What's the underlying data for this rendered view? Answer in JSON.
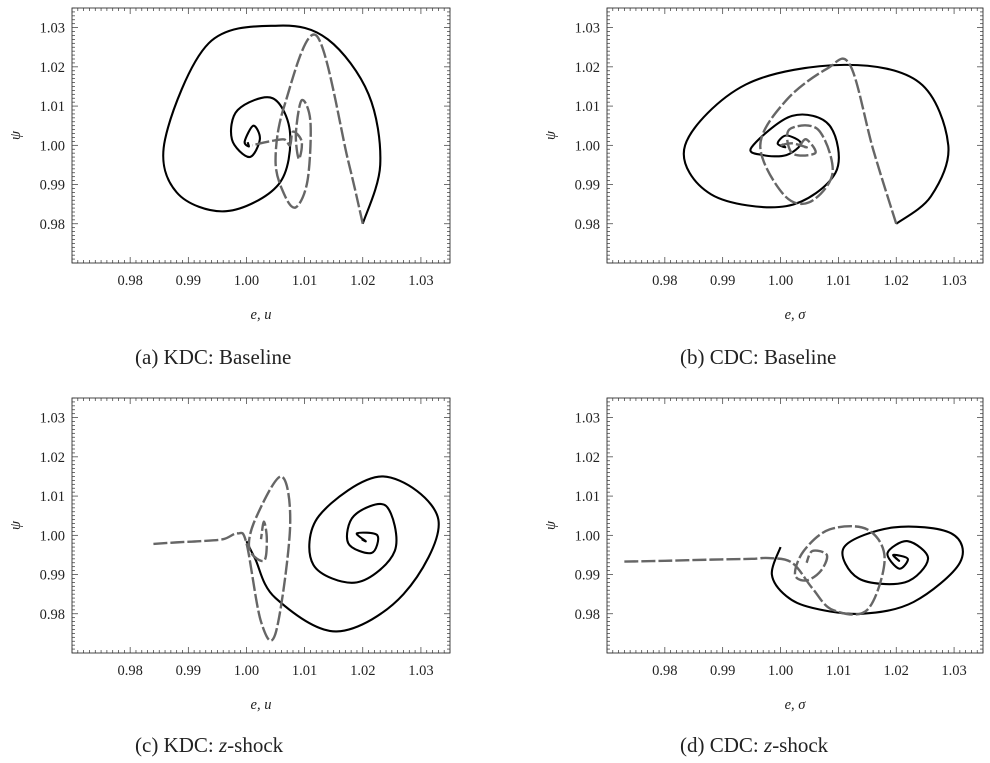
{
  "chart_data": [
    {
      "id": "a",
      "type": "line",
      "caption_prefix": "(a) KDC: ",
      "caption_italic": "",
      "caption_text": "Baseline",
      "xlabel": "e, u",
      "ylabel": "ψ",
      "xlim": [
        0.97,
        1.035
      ],
      "ylim": [
        0.97,
        1.035
      ],
      "xticks": [
        "0.98",
        "0.99",
        "1.00",
        "1.01",
        "1.02",
        "1.03"
      ],
      "yticks": [
        "0.98",
        "0.99",
        "1.00",
        "1.01",
        "1.02",
        "1.03"
      ],
      "series": [
        {
          "style": "solid",
          "color": "#000000",
          "x": [
            1.02,
            1.023,
            1.021,
            1.014,
            1.0055,
            0.9935,
            0.986,
            0.988,
            0.9965,
            1.0055,
            1.0075,
            1.0045,
            0.9985,
            0.9975,
            1.0005,
            1.0023,
            1.0012,
            0.9997,
            1.0004,
            1.0002
          ],
          "y": [
            0.98,
            0.995,
            1.013,
            1.027,
            1.0305,
            1.026,
            1.0015,
            0.988,
            0.9832,
            0.99,
            1.003,
            1.012,
            1.009,
            1.0015,
            0.997,
            1.0015,
            1.005,
            1.001,
            0.9997,
            1.0008
          ]
        },
        {
          "style": "dashed",
          "color": "#666666",
          "x": [
            1.02,
            1.0175,
            1.012,
            1.0065,
            1.005,
            1.0065,
            1.0085,
            1.0105,
            1.011,
            1.0095,
            1.0085,
            1.009,
            1.0095,
            1.008,
            1.0075,
            1.0065,
            1.004,
            1.001
          ],
          "y": [
            0.98,
            0.996,
            1.028,
            1.01,
            0.996,
            0.9875,
            0.9842,
            0.991,
            1.006,
            1.0115,
            1.003,
            0.9965,
            1.001,
            1.0035,
            1.0,
            1.0015,
            1.001,
            1.0
          ]
        }
      ]
    },
    {
      "id": "b",
      "type": "line",
      "caption_prefix": "(b) CDC: ",
      "caption_italic": "",
      "caption_text": "Baseline",
      "xlabel": "e, σ",
      "ylabel": "ψ",
      "xlim": [
        0.97,
        1.035
      ],
      "ylim": [
        0.97,
        1.035
      ],
      "xticks": [
        "0.98",
        "0.99",
        "1.00",
        "1.01",
        "1.02",
        "1.03"
      ],
      "yticks": [
        "0.98",
        "0.99",
        "1.00",
        "1.01",
        "1.02",
        "1.03"
      ],
      "series": [
        {
          "style": "solid",
          "color": "#000000",
          "x": [
            1.02,
            1.026,
            1.029,
            1.024,
            1.011,
            0.994,
            0.9835,
            0.988,
            1.001,
            1.0095,
            1.0085,
            1.002,
            0.995,
            0.997,
            1.001,
            1.0035,
            1.001,
            0.9995,
            1.0008,
            1.0002
          ],
          "y": [
            0.98,
            0.987,
            1.0,
            1.016,
            1.0205,
            1.0155,
            1.0,
            0.9875,
            0.9845,
            0.993,
            1.005,
            1.0075,
            0.9995,
            0.9975,
            0.9975,
            1.0005,
            1.0025,
            1.0005,
            0.9995,
            1.0003
          ]
        },
        {
          "style": "dashed",
          "color": "#666666",
          "x": [
            1.02,
            1.016,
            1.012,
            1.008,
            1.001,
            0.9965,
            1.0005,
            1.005,
            1.009,
            1.0065,
            1.0015,
            1.002,
            1.006,
            1.0045,
            1.0035,
            1.0045,
            1.002,
            1.0
          ],
          "y": [
            0.98,
            0.999,
            1.0205,
            1.0195,
            1.0115,
            1.0,
            0.9875,
            0.9855,
            0.993,
            1.004,
            1.004,
            0.998,
            0.998,
            1.0015,
            1.0,
            0.9995,
            1.0005,
            1.0
          ]
        }
      ]
    },
    {
      "id": "c",
      "type": "line",
      "caption_prefix": "(c) KDC: ",
      "caption_italic": "z",
      "caption_text": "-shock",
      "xlabel": "e, u",
      "ylabel": "ψ",
      "xlim": [
        0.97,
        1.035
      ],
      "ylim": [
        0.97,
        1.035
      ],
      "xticks": [
        "0.98",
        "0.99",
        "1.00",
        "1.01",
        "1.02",
        "1.03"
      ],
      "yticks": [
        "0.98",
        "0.99",
        "1.00",
        "1.01",
        "1.02",
        "1.03"
      ],
      "series": [
        {
          "style": "solid",
          "color": "#000000",
          "x": [
            1.0,
            1.0015,
            1.005,
            1.0155,
            1.027,
            1.033,
            1.0235,
            1.0125,
            1.0115,
            1.019,
            1.0255,
            1.024,
            1.0185,
            1.0175,
            1.0215,
            1.0225,
            1.019,
            1.0205,
            1.0198
          ],
          "y": [
            0.9985,
            0.994,
            0.984,
            0.9755,
            0.985,
            1.004,
            1.015,
            1.005,
            0.9925,
            0.988,
            0.996,
            1.0075,
            1.005,
            0.998,
            0.9955,
            1.0,
            1.0005,
            0.9985,
            0.999
          ]
        },
        {
          "style": "dashed",
          "color": "#666666",
          "x": [
            0.984,
            0.988,
            0.992,
            0.996,
            0.9985,
            1.0,
            1.0025,
            1.005,
            1.0075,
            1.006,
            1.0015,
            1.0005,
            1.003,
            1.0035,
            1.003,
            1.0025
          ],
          "y": [
            0.9978,
            0.9982,
            0.9985,
            0.999,
            1.0005,
            0.998,
            0.978,
            0.975,
            1.002,
            1.015,
            1.004,
            0.9965,
            0.9935,
            0.999,
            1.0035,
            0.999
          ]
        }
      ]
    },
    {
      "id": "d",
      "type": "line",
      "caption_prefix": "(d) CDC: ",
      "caption_italic": "z",
      "caption_text": "-shock",
      "xlabel": "e, σ",
      "ylabel": "ψ",
      "xlim": [
        0.97,
        1.035
      ],
      "ylim": [
        0.97,
        1.035
      ],
      "xticks": [
        "0.98",
        "0.99",
        "1.00",
        "1.01",
        "1.02",
        "1.03"
      ],
      "yticks": [
        "0.98",
        "0.99",
        "1.00",
        "1.01",
        "1.02",
        "1.03"
      ],
      "series": [
        {
          "style": "solid",
          "color": "#000000",
          "x": [
            1.0,
            0.9985,
            1.001,
            1.0055,
            1.014,
            1.023,
            1.031,
            1.0295,
            1.0195,
            1.011,
            1.0135,
            1.0215,
            1.0255,
            1.022,
            1.0185,
            1.0205,
            1.022,
            1.0195,
            1.0205,
            1.0199
          ],
          "y": [
            0.997,
            0.99,
            0.9845,
            0.9815,
            0.98,
            0.983,
            0.993,
            1.0005,
            1.002,
            0.997,
            0.989,
            0.988,
            0.994,
            0.9985,
            0.9955,
            0.9915,
            0.994,
            0.995,
            0.9935,
            0.9942
          ]
        },
        {
          "style": "dashed",
          "color": "#666666",
          "x": [
            0.973,
            0.98,
            0.988,
            0.995,
            0.998,
            1.002,
            1.0055,
            1.009,
            1.015,
            1.018,
            1.015,
            1.0085,
            1.004,
            1.0025,
            1.0045,
            1.007,
            1.008,
            1.0055,
            1.0045
          ],
          "y": [
            0.9933,
            0.9935,
            0.9938,
            0.994,
            0.9942,
            0.993,
            0.9865,
            0.981,
            0.981,
            0.994,
            1.0015,
            1.0015,
            0.996,
            0.99,
            0.9885,
            0.991,
            0.995,
            0.996,
            0.993
          ]
        }
      ]
    }
  ]
}
